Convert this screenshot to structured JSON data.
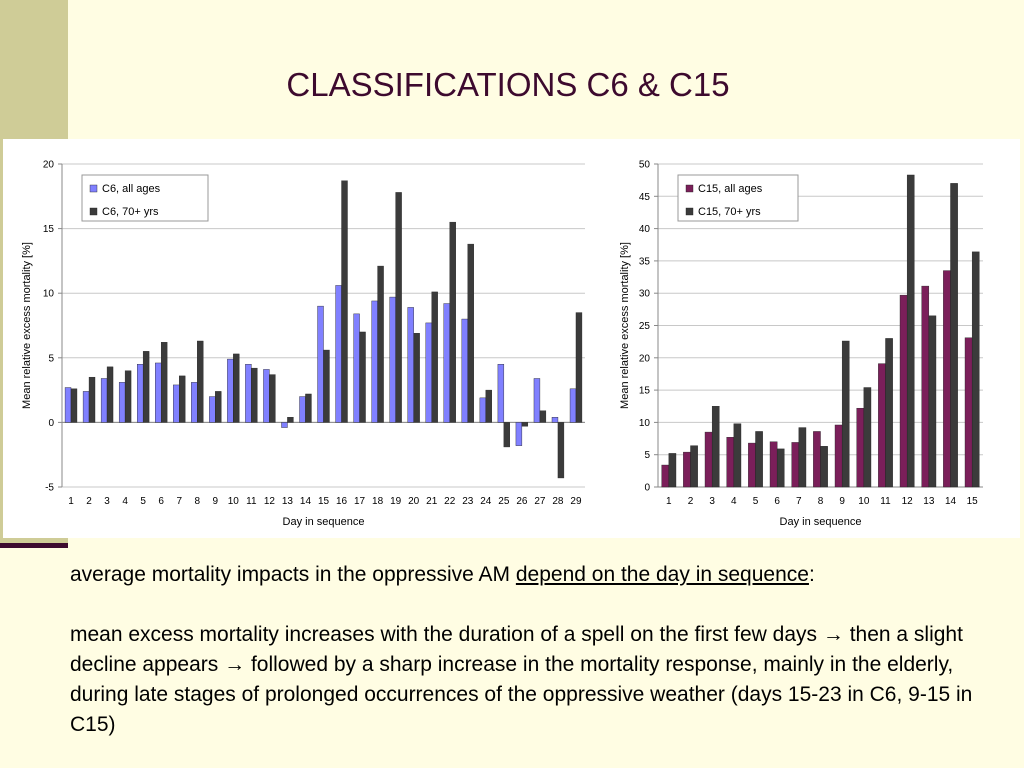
{
  "slide": {
    "title": "CLASSIFICATIONS C6 & C15",
    "paragraph1": {
      "before": "average mortality impacts in the oppressive AM ",
      "underlined": "depend on the day in sequence",
      "after": ":"
    },
    "paragraph2": {
      "part1": "mean excess mortality increases with the duration of a spell on the first few days ",
      "arrow1": "→",
      "part2": " then a slight decline appears ",
      "arrow2": "→",
      "part3": " followed by a sharp increase in the mortality response, mainly in the elderly, during late stages of prolonged occurrences of the oppressive weather (days 15-23 in C6, 9-15 in C15)"
    }
  },
  "colors": {
    "background": "#fffde3",
    "side_band": "#cfcc97",
    "accent": "#3d0a2e",
    "c6_all_ages": "#8080ff",
    "c15_all_ages": "#7b1f5a",
    "elderly": "#3b3b3b"
  },
  "chart_data": [
    {
      "type": "bar",
      "xlabel": "Day in sequence",
      "ylabel": "Mean relative excess mortality [%]",
      "ylim": [
        -5,
        20
      ],
      "yticks": [
        -5,
        0,
        5,
        10,
        15,
        20
      ],
      "legend_position": "top-left",
      "grid": true,
      "categories": [
        "1",
        "2",
        "3",
        "4",
        "5",
        "6",
        "7",
        "8",
        "9",
        "10",
        "11",
        "12",
        "13",
        "14",
        "15",
        "16",
        "17",
        "18",
        "19",
        "20",
        "21",
        "22",
        "23",
        "24",
        "25",
        "26",
        "27",
        "28",
        "29"
      ],
      "series": [
        {
          "name": "C6, all ages",
          "color": "#8080ff",
          "values": [
            2.7,
            2.4,
            3.4,
            3.1,
            4.5,
            4.6,
            2.9,
            3.1,
            2.0,
            4.9,
            4.5,
            4.1,
            -0.4,
            2.0,
            9.0,
            10.6,
            8.4,
            9.4,
            9.7,
            8.9,
            7.7,
            9.2,
            8.0,
            1.9,
            4.5,
            -1.8,
            3.4,
            0.4,
            2.6
          ]
        },
        {
          "name": "C6, 70+ yrs",
          "color": "#3b3b3b",
          "values": [
            2.6,
            3.5,
            4.3,
            4.0,
            5.5,
            6.2,
            3.6,
            6.3,
            2.4,
            5.3,
            4.2,
            3.7,
            0.4,
            2.2,
            5.6,
            18.7,
            7.0,
            12.1,
            17.8,
            6.9,
            10.1,
            15.5,
            13.8,
            2.5,
            -1.9,
            -0.3,
            0.9,
            -4.3,
            8.5
          ]
        }
      ]
    },
    {
      "type": "bar",
      "xlabel": "Day in sequence",
      "ylabel": "Mean relative excess mortality [%]",
      "ylim": [
        0,
        50
      ],
      "yticks": [
        0,
        5,
        10,
        15,
        20,
        25,
        30,
        35,
        40,
        45,
        50
      ],
      "legend_position": "top-left",
      "grid": true,
      "categories": [
        "1",
        "2",
        "3",
        "4",
        "5",
        "6",
        "7",
        "8",
        "9",
        "10",
        "11",
        "12",
        "13",
        "14",
        "15"
      ],
      "series": [
        {
          "name": "C15, all ages",
          "color": "#7b1f5a",
          "values": [
            3.4,
            5.4,
            8.5,
            7.7,
            6.8,
            7.0,
            6.9,
            8.6,
            9.6,
            12.2,
            19.1,
            29.7,
            31.1,
            33.5,
            23.1
          ]
        },
        {
          "name": "C15, 70+ yrs",
          "color": "#3b3b3b",
          "values": [
            5.2,
            6.4,
            12.5,
            9.8,
            8.6,
            5.9,
            9.2,
            6.3,
            22.6,
            15.4,
            23.0,
            48.3,
            26.5,
            47.0,
            36.4
          ]
        }
      ]
    }
  ]
}
